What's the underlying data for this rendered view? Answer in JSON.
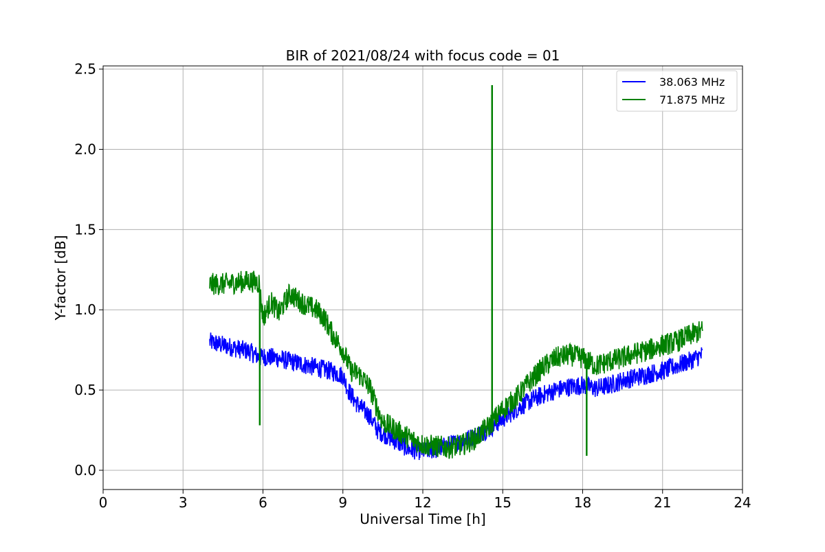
{
  "chart_data": {
    "type": "line",
    "title": "BIR of 2021/08/24 with focus code = 01",
    "xlabel": "Universal Time [h]",
    "ylabel": "Y-factor [dB]",
    "xlim": [
      0,
      24
    ],
    "ylim": [
      -0.12,
      2.52
    ],
    "x_ticks": [
      0,
      3,
      6,
      9,
      12,
      15,
      18,
      21,
      24
    ],
    "x_tick_labels": [
      "0",
      "3",
      "6",
      "9",
      "12",
      "15",
      "18",
      "21",
      "24"
    ],
    "y_ticks": [
      0.0,
      0.5,
      1.0,
      1.5,
      2.0,
      2.5
    ],
    "y_tick_labels": [
      "0.0",
      "0.5",
      "1.0",
      "1.5",
      "2.0",
      "2.5"
    ],
    "grid": true,
    "legend_position": "top-right",
    "series": [
      {
        "name": "38.063 MHz",
        "color": "#0000ff",
        "x": [
          4.0,
          4.5,
          5.0,
          5.5,
          5.9,
          6.0,
          6.5,
          7.0,
          7.5,
          8.0,
          8.5,
          9.0,
          9.2,
          9.5,
          10.0,
          10.3,
          10.5,
          11.0,
          11.5,
          12.0,
          12.5,
          13.0,
          13.5,
          14.0,
          14.5,
          15.0,
          15.5,
          16.0,
          16.5,
          17.0,
          17.5,
          18.0,
          18.5,
          19.0,
          19.5,
          20.0,
          20.5,
          21.0,
          21.5,
          22.0,
          22.5
        ],
        "y": [
          0.8,
          0.78,
          0.76,
          0.74,
          0.7,
          0.71,
          0.7,
          0.68,
          0.66,
          0.64,
          0.62,
          0.59,
          0.5,
          0.42,
          0.34,
          0.25,
          0.23,
          0.18,
          0.13,
          0.12,
          0.13,
          0.16,
          0.18,
          0.22,
          0.26,
          0.32,
          0.38,
          0.43,
          0.47,
          0.5,
          0.52,
          0.53,
          0.51,
          0.53,
          0.56,
          0.58,
          0.6,
          0.62,
          0.65,
          0.68,
          0.72
        ],
        "noise": 0.06
      },
      {
        "name": "71.875 MHz",
        "color": "#008000",
        "x": [
          4.0,
          4.5,
          5.0,
          5.5,
          5.85,
          6.0,
          6.3,
          6.6,
          7.0,
          7.5,
          8.0,
          8.3,
          8.6,
          9.0,
          9.3,
          9.6,
          10.0,
          10.3,
          10.5,
          11.0,
          11.5,
          12.0,
          12.5,
          13.0,
          13.5,
          14.0,
          14.5,
          14.8,
          15.0,
          15.5,
          16.0,
          16.5,
          17.0,
          17.5,
          18.0,
          18.5,
          19.0,
          19.5,
          20.0,
          20.5,
          21.0,
          21.5,
          22.0,
          22.5
        ],
        "y": [
          1.16,
          1.16,
          1.17,
          1.18,
          1.17,
          0.95,
          1.05,
          0.98,
          1.1,
          1.04,
          1.0,
          0.95,
          0.85,
          0.75,
          0.62,
          0.6,
          0.52,
          0.38,
          0.3,
          0.25,
          0.2,
          0.16,
          0.15,
          0.14,
          0.16,
          0.2,
          0.28,
          0.34,
          0.38,
          0.45,
          0.55,
          0.64,
          0.7,
          0.72,
          0.7,
          0.65,
          0.68,
          0.7,
          0.73,
          0.75,
          0.78,
          0.8,
          0.84,
          0.87
        ],
        "noise": 0.07,
        "spikes": [
          {
            "x": 5.88,
            "y": 0.28
          },
          {
            "x": 14.6,
            "y": 2.4
          },
          {
            "x": 18.15,
            "y": 0.09
          }
        ]
      }
    ]
  }
}
